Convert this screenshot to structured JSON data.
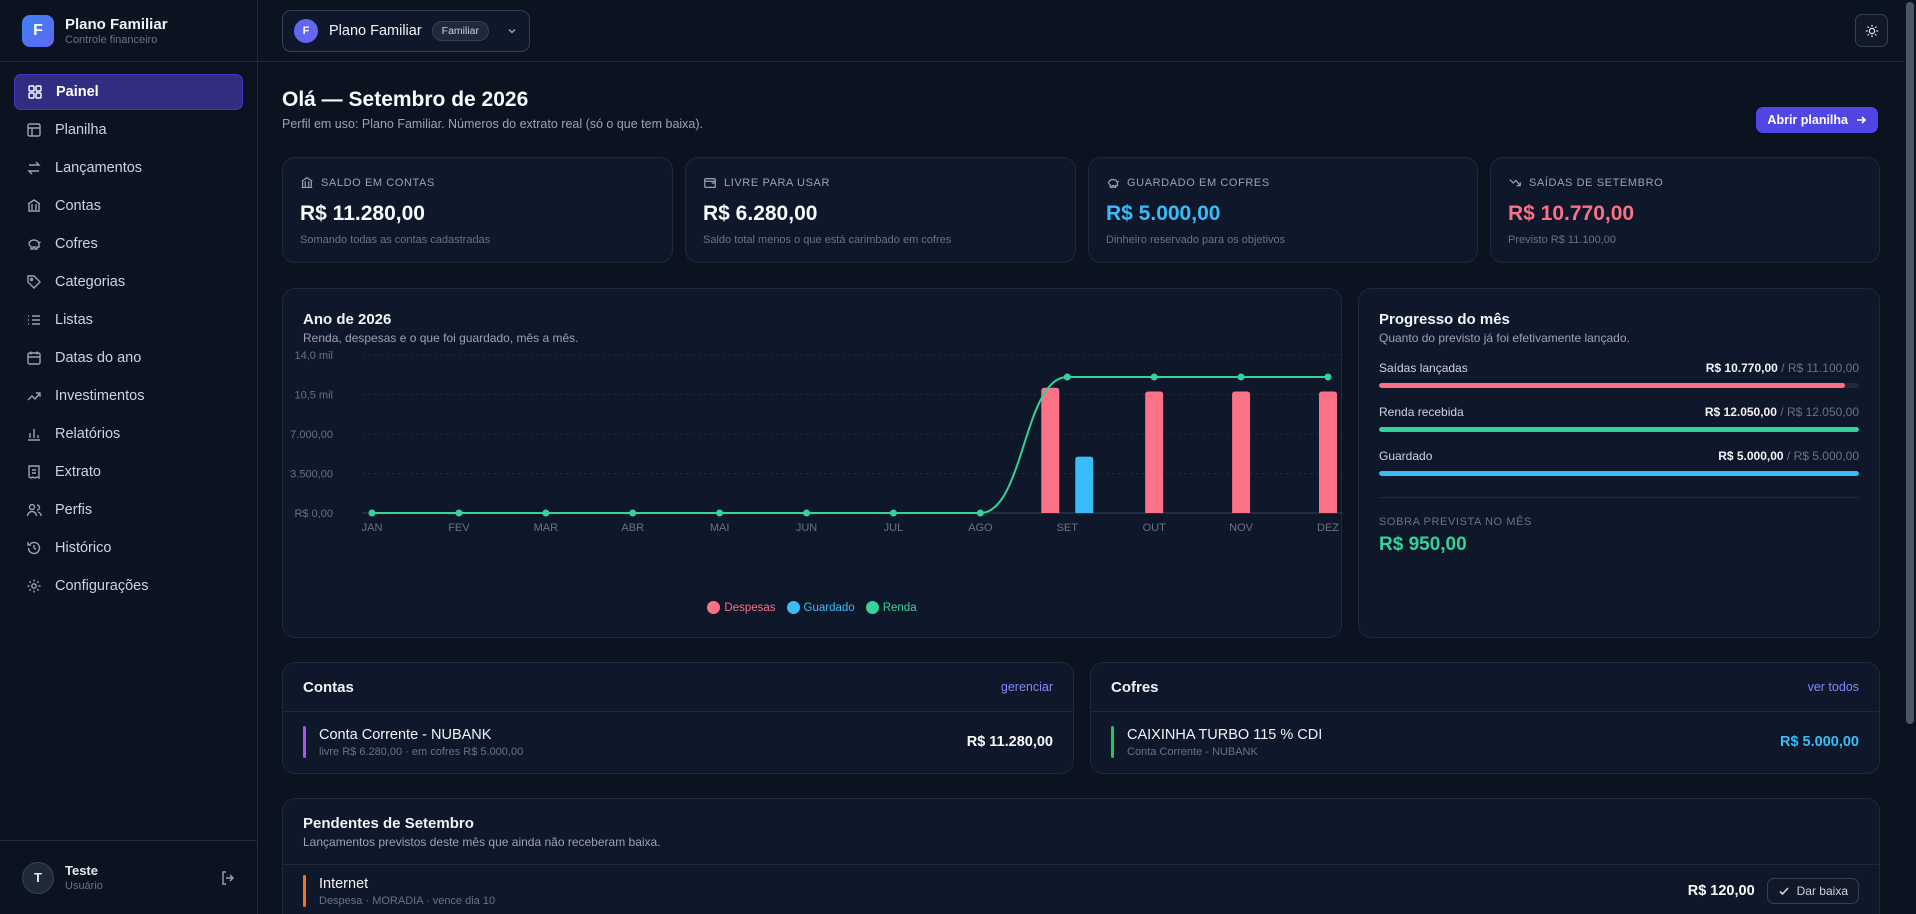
{
  "brand": {
    "initial": "F",
    "name": "Plano Familiar",
    "subtitle": "Controle financeiro"
  },
  "nav": [
    {
      "label": "Painel",
      "icon": "dashboard-icon",
      "active": true
    },
    {
      "label": "Planilha",
      "icon": "spreadsheet-icon"
    },
    {
      "label": "Lançamentos",
      "icon": "transfer-icon"
    },
    {
      "label": "Contas",
      "icon": "bank-icon"
    },
    {
      "label": "Cofres",
      "icon": "piggy-bank-icon"
    },
    {
      "label": "Categorias",
      "icon": "tag-icon"
    },
    {
      "label": "Listas",
      "icon": "list-icon"
    },
    {
      "label": "Datas do ano",
      "icon": "calendar-icon"
    },
    {
      "label": "Investimentos",
      "icon": "trending-up-icon"
    },
    {
      "label": "Relatórios",
      "icon": "bar-chart-icon"
    },
    {
      "label": "Extrato",
      "icon": "receipt-icon"
    },
    {
      "label": "Perfis",
      "icon": "users-icon"
    },
    {
      "label": "Histórico",
      "icon": "history-icon"
    },
    {
      "label": "Configurações",
      "icon": "gear-icon"
    }
  ],
  "user": {
    "initial": "T",
    "name": "Teste",
    "role": "Usuário"
  },
  "profile": {
    "initial": "F",
    "name": "Plano Familiar",
    "badge": "Familiar"
  },
  "greeting": {
    "title": "Olá — Setembro de 2026",
    "subtitle": "Perfil em uso: Plano Familiar. Números do extrato real (só o que tem baixa).",
    "button": "Abrir planilha"
  },
  "stats": [
    {
      "label": "SALDO EM CONTAS",
      "value": "R$ 11.280,00",
      "sub": "Somando todas as contas cadastradas",
      "color": "#f9fafb",
      "icon": "bank-icon"
    },
    {
      "label": "LIVRE PARA USAR",
      "value": "R$ 6.280,00",
      "sub": "Saldo total menos o que está carimbado em cofres",
      "color": "#f9fafb",
      "icon": "wallet-icon"
    },
    {
      "label": "GUARDADO EM COFRES",
      "value": "R$ 5.000,00",
      "sub": "Dinheiro reservado para os objetivos",
      "color": "#38bdf8",
      "icon": "piggy-bank-icon"
    },
    {
      "label": "SAÍDAS DE SETEMBRO",
      "value": "R$ 10.770,00",
      "sub": "Previsto R$ 11.100,00",
      "color": "#fb7185",
      "icon": "trending-down-icon"
    }
  ],
  "year_chart": {
    "title": "Ano de 2026",
    "subtitle": "Renda, despesas e o que foi guardado, mês a mês."
  },
  "chart_data": {
    "type": "bar",
    "categories": [
      "JAN",
      "FEV",
      "MAR",
      "ABR",
      "MAI",
      "JUN",
      "JUL",
      "AGO",
      "SET",
      "OUT",
      "NOV",
      "DEZ"
    ],
    "series": [
      {
        "name": "Despesas",
        "kind": "bar",
        "color": "#fb7185",
        "values": [
          0,
          0,
          0,
          0,
          0,
          0,
          0,
          0,
          11100,
          10770,
          10770,
          10770
        ]
      },
      {
        "name": "Guardado",
        "kind": "bar",
        "color": "#38bdf8",
        "values": [
          0,
          0,
          0,
          0,
          0,
          0,
          0,
          0,
          5000,
          0,
          0,
          0
        ]
      },
      {
        "name": "Renda",
        "kind": "line",
        "color": "#34d399",
        "values": [
          0,
          0,
          0,
          0,
          0,
          0,
          0,
          0,
          12050,
          12050,
          12050,
          12050
        ]
      }
    ],
    "yticks": [
      "R$ 0,00",
      "3.500,00",
      "7.000,00",
      "10,5 mil",
      "14,0 mil"
    ],
    "ylim": [
      0,
      14000
    ],
    "grid": true,
    "legend": "bottom"
  },
  "progress": {
    "title": "Progresso do mês",
    "subtitle": "Quanto do previsto já foi efetivamente lançado.",
    "rows": [
      {
        "label": "Saídas lançadas",
        "done": "R$ 10.770,00",
        "sep": "/",
        "planned": "R$ 11.100,00",
        "fraction": 0.97,
        "color": "#fb7185"
      },
      {
        "label": "Renda recebida",
        "done": "R$ 12.050,00",
        "sep": "/",
        "planned": "R$ 12.050,00",
        "fraction": 1.0,
        "color": "#34d399"
      },
      {
        "label": "Guardado",
        "done": "R$ 5.000,00",
        "sep": "/",
        "planned": "R$ 5.000,00",
        "fraction": 1.0,
        "color": "#38bdf8"
      }
    ],
    "leftover_label": "SOBRA PREVISTA NO MÊS",
    "leftover_value": "R$ 950,00"
  },
  "accounts": {
    "title": "Contas",
    "link": "gerenciar",
    "items": [
      {
        "name": "Conta Corrente - NUBANK",
        "sub": "livre R$ 6.280,00 · em cofres R$ 5.000,00",
        "value": "R$ 11.280,00",
        "color": "#a855f7"
      }
    ]
  },
  "vaults": {
    "title": "Cofres",
    "link": "ver todos",
    "items": [
      {
        "name": "CAIXINHA TURBO 115 % CDI",
        "sub": "Conta Corrente - NUBANK",
        "value": "R$ 5.000,00",
        "color": "#22c55e"
      }
    ]
  },
  "pending": {
    "title": "Pendentes de Setembro",
    "subtitle": "Lançamentos previstos deste mês que ainda não receberam baixa.",
    "items": [
      {
        "name": "Internet",
        "sub": "Despesa · MORADIA · vence dia 10",
        "value": "R$ 120,00",
        "action": "Dar baixa",
        "color": "#f97316"
      }
    ]
  }
}
